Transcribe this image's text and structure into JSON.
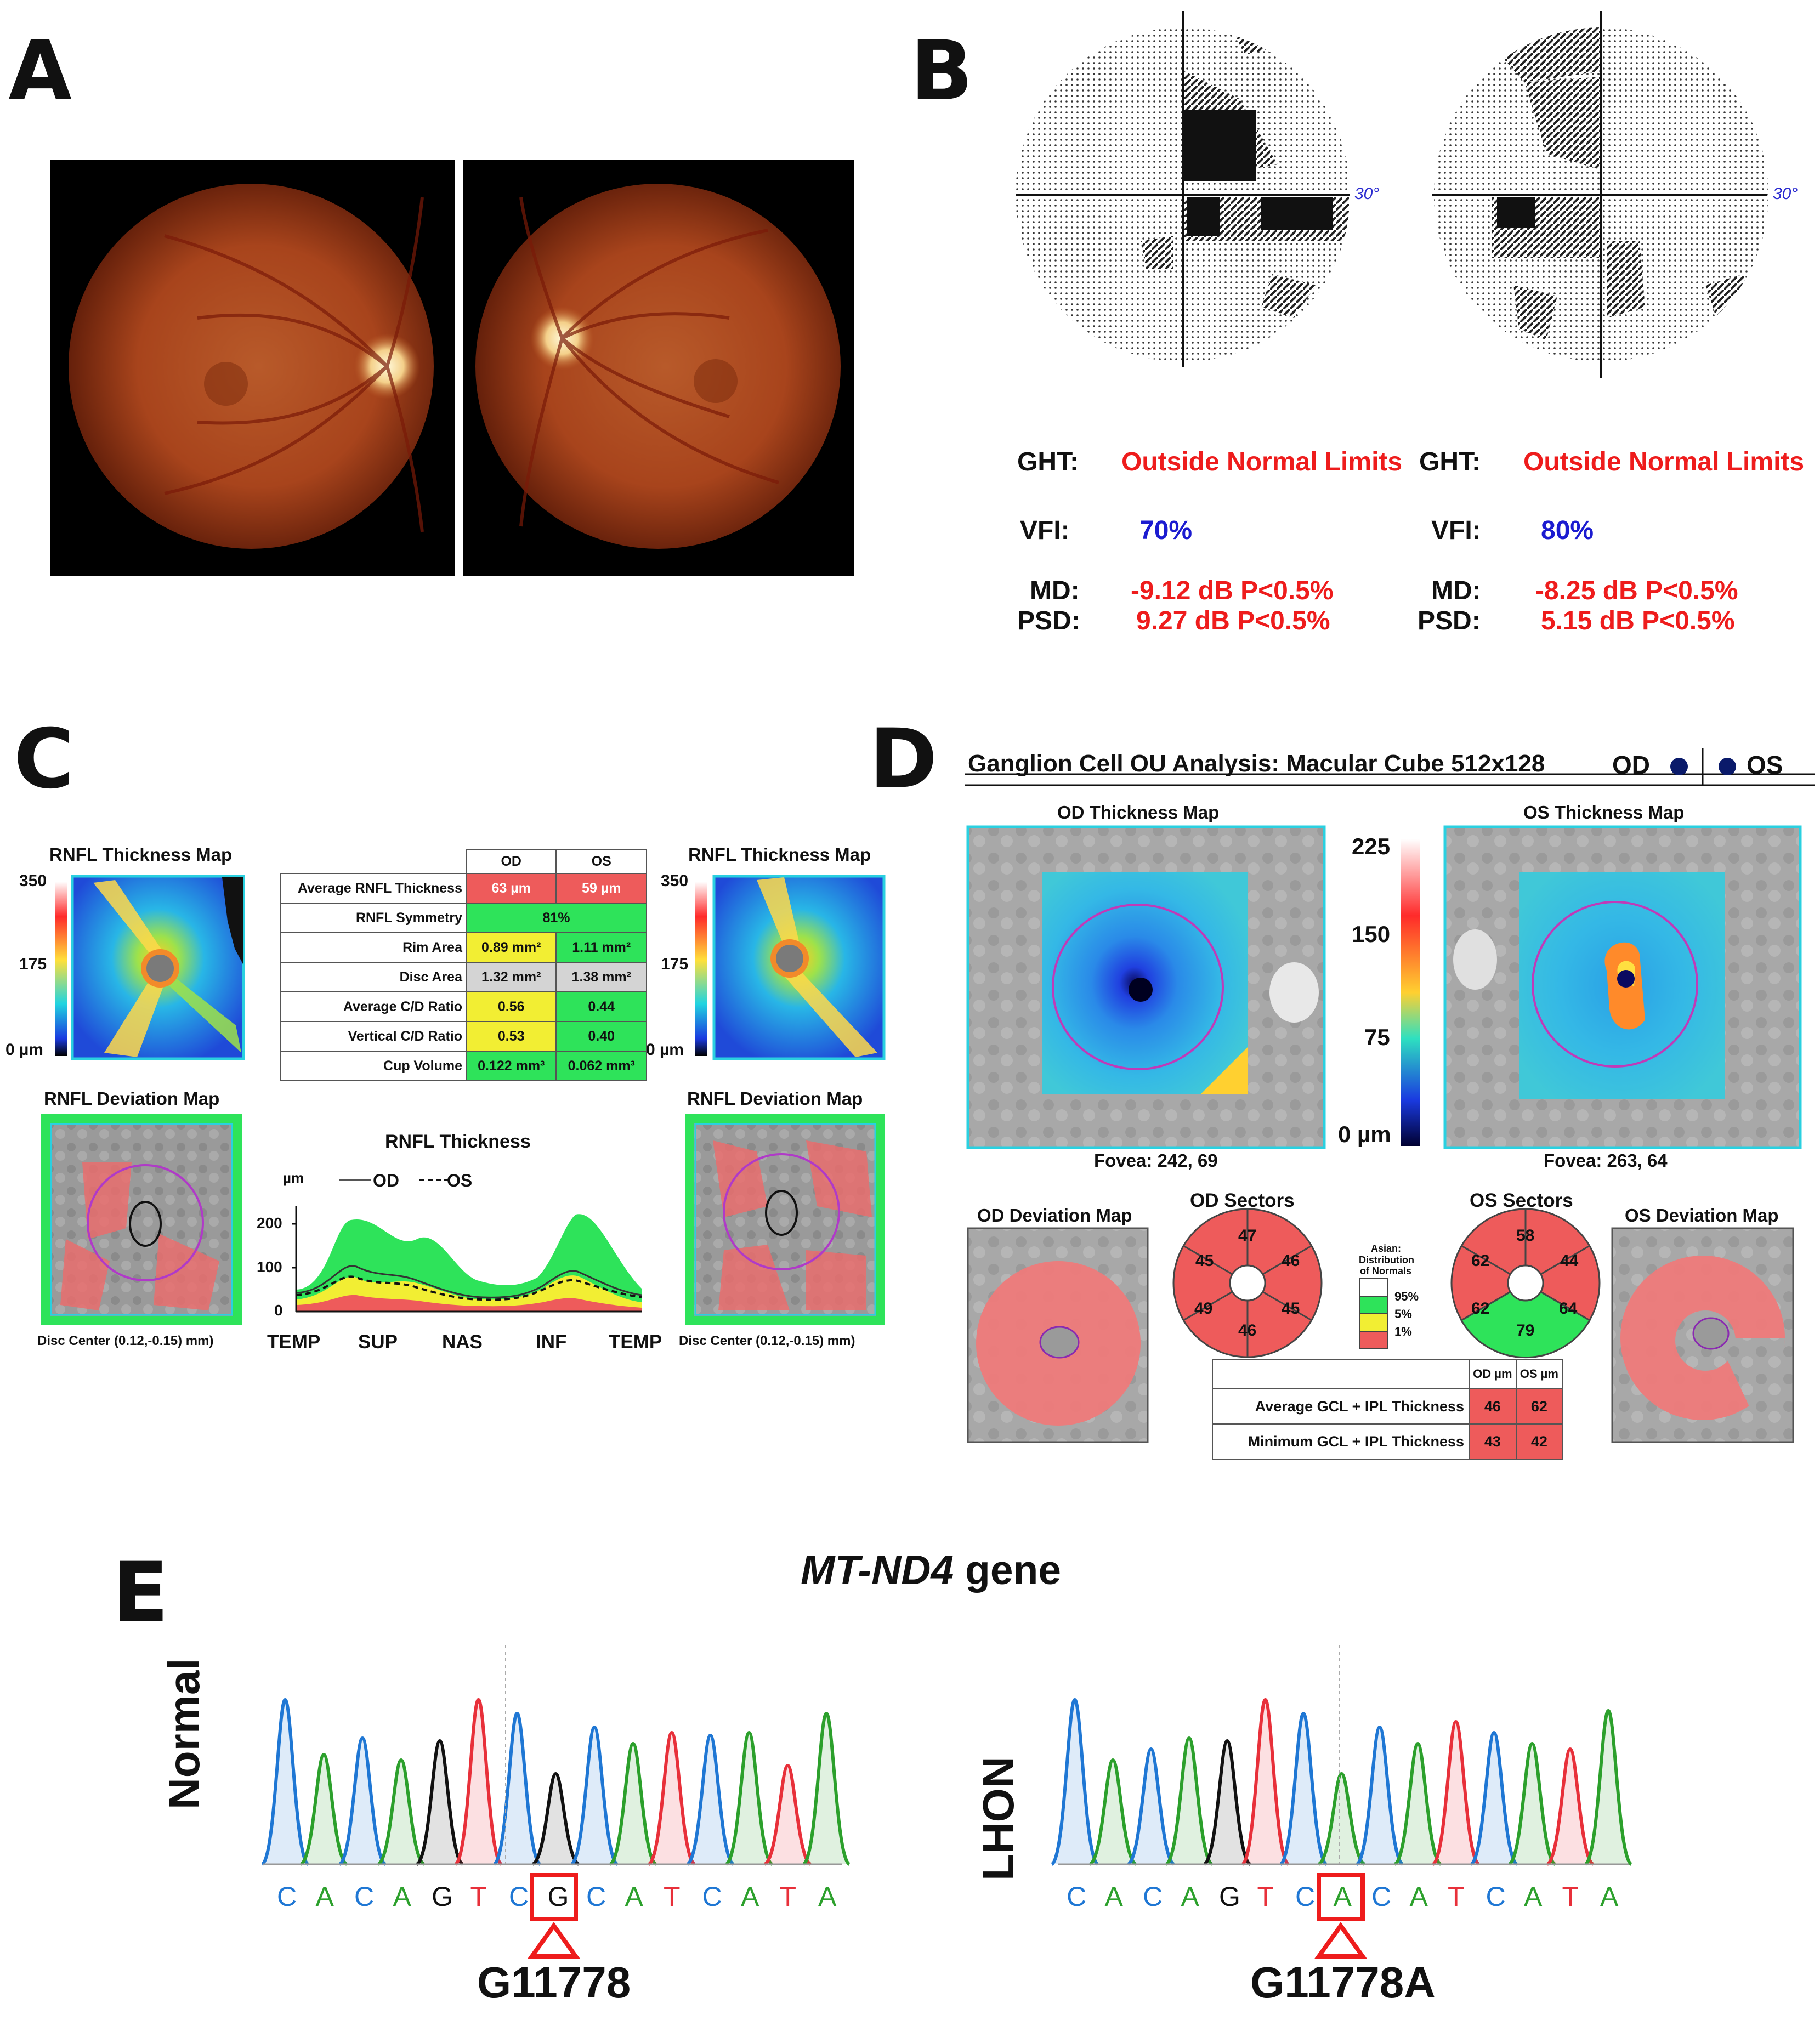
{
  "panels": {
    "a": "A",
    "b": "B",
    "c": "C",
    "d": "D",
    "e": "E"
  },
  "colors": {
    "red_cell": "#ee5b5b",
    "green_cell": "#2ee35a",
    "yellow_cell": "#f2ee33",
    "grey_cell": "#d4d4d4",
    "fundus_dark": "#5a1a08",
    "fundus_mid": "#b4481c",
    "accent_red": "#ee1c1c",
    "accent_blue": "#1b1bd0"
  },
  "panel_b": {
    "od": {
      "degree": "30°",
      "ght_label": "GHT:",
      "ght": "Outside Normal Limits",
      "vfi_label": "VFI:",
      "vfi": "70%",
      "md_label": "MD:",
      "md": "-9.12 dB P<0.5%",
      "psd_label": "PSD:",
      "psd": "9.27 dB P<0.5%"
    },
    "os": {
      "degree": "30°",
      "ght_label": "GHT:",
      "ght": "Outside Normal Limits",
      "vfi_label": "VFI:",
      "vfi": "80%",
      "md_label": "MD:",
      "md": "-8.25 dB P<0.5%",
      "psd_label": "PSD:",
      "psd": "5.15 dB P<0.5%"
    }
  },
  "panel_c": {
    "thickness_map_title": "RNFL Thickness Map",
    "scale": {
      "top": "350",
      "mid": "175",
      "bottom": "0 µm"
    },
    "deviation_map_title": "RNFL Deviation Map",
    "disc_center": "Disc Center (0.12,-0.15) mm)",
    "table": {
      "headers": [
        "OD",
        "OS"
      ],
      "rows": [
        {
          "label": "Average RNFL Thickness",
          "od": "63 µm",
          "os": "59 µm"
        },
        {
          "label": "RNFL Symmetry",
          "both": "81%"
        },
        {
          "label": "Rim Area",
          "od": "0.89 mm²",
          "os": "1.11 mm²"
        },
        {
          "label": "Disc Area",
          "od": "1.32 mm²",
          "os": "1.38 mm²"
        },
        {
          "label": "Average C/D Ratio",
          "od": "0.56",
          "os": "0.44"
        },
        {
          "label": "Vertical C/D Ratio",
          "od": "0.53",
          "os": "0.40"
        },
        {
          "label": "Cup Volume",
          "od": "0.122 mm³",
          "os": "0.062 mm³"
        }
      ]
    },
    "tsnit": {
      "title": "RNFL Thickness",
      "unit": "µm",
      "legend_od": "OD",
      "legend_os": "OS",
      "y_ticks": [
        "200",
        "100",
        "0"
      ],
      "x_ticks": [
        "TEMP",
        "SUP",
        "NAS",
        "INF",
        "TEMP"
      ]
    }
  },
  "panel_d": {
    "header": "Ganglion Cell OU Analysis: Macular Cube 512x128",
    "od_label": "OD",
    "os_label": "OS",
    "od_map_title": "OD Thickness Map",
    "os_map_title": "OS Thickness Map",
    "scale": {
      "v225": "225",
      "v150": "150",
      "v75": "75",
      "v0": "0 µm"
    },
    "od_fovea": "Fovea: 242, 69",
    "os_fovea": "Fovea: 263, 64",
    "od_dev_title": "OD Deviation Map",
    "os_dev_title": "OS Deviation Map",
    "od_sectors_title": "OD Sectors",
    "os_sectors_title": "OS Sectors",
    "od_sectors": {
      "top": "47",
      "tr": "46",
      "br": "45",
      "bottom": "46",
      "bl": "49",
      "tl": "45"
    },
    "os_sectors": {
      "top": "58",
      "tr": "44",
      "br": "64",
      "bottom": "79",
      "bl": "62",
      "tl": "62"
    },
    "legend": {
      "title1": "Asian:",
      "title2": "Distribution",
      "title3": "of Normals",
      "p95": "95%",
      "p5": "5%",
      "p1": "1%"
    },
    "table": {
      "h_od": "OD µm",
      "h_os": "OS µm",
      "r1": "Average GCL + IPL Thickness",
      "r1_od": "46",
      "r1_os": "62",
      "r2": "Minimum GCL + IPL Thickness",
      "r2_od": "43",
      "r2_os": "42"
    }
  },
  "panel_e": {
    "gene_italic": "MT-ND4",
    "gene_suffix": " gene",
    "normal_label": "Normal",
    "lhon_label": "LHON",
    "normal_seq": [
      "C",
      "A",
      "C",
      "A",
      "G",
      "T",
      "C",
      "G",
      "C",
      "A",
      "T",
      "C",
      "A",
      "T",
      "A"
    ],
    "lhon_seq": [
      "C",
      "A",
      "C",
      "A",
      "G",
      "T",
      "C",
      "A",
      "C",
      "A",
      "T",
      "C",
      "A",
      "T",
      "A"
    ],
    "normal_variant": "G11778",
    "lhon_variant": "G11778A"
  }
}
